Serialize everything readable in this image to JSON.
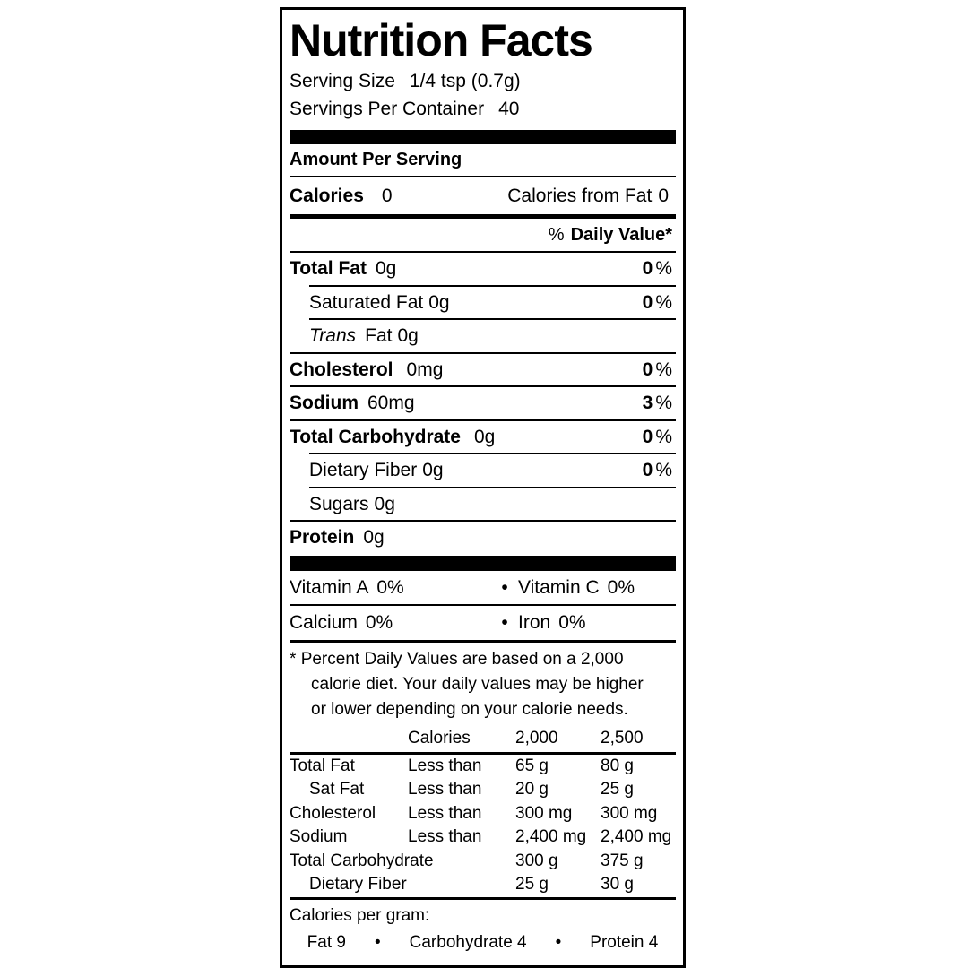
{
  "title": "Nutrition Facts",
  "percent_sign": "%",
  "bullet": "•",
  "serving": {
    "size_label": "Serving Size",
    "size_value": "1/4 tsp (0.7g)",
    "per_container_label": "Servings Per Container",
    "per_container_value": "40"
  },
  "amount_per_serving": "Amount Per Serving",
  "calories": {
    "label": "Calories",
    "value": "0",
    "from_fat_label": "Calories from Fat",
    "from_fat_value": "0"
  },
  "daily_value_header": "Daily Value*",
  "nutrients": [
    {
      "name": "Total Fat",
      "amount": "0g",
      "dv": "0"
    },
    {
      "name": "Saturated Fat",
      "amount": "0g",
      "dv": "0"
    },
    {
      "name_italic": "Trans",
      "name": "Fat",
      "amount": "0g"
    },
    {
      "name": "Cholesterol",
      "amount": "0mg",
      "dv": "0"
    },
    {
      "name": "Sodium",
      "amount": "60mg",
      "dv": "3"
    },
    {
      "name": "Total Carbohydrate",
      "amount": "0g",
      "dv": "0"
    },
    {
      "name": "Dietary Fiber",
      "amount": "0g",
      "dv": "0"
    },
    {
      "name": "Sugars",
      "amount": "0g"
    },
    {
      "name": "Protein",
      "amount": "0g"
    }
  ],
  "vitamins": [
    {
      "left_label": "Vitamin A",
      "left_value": "0%",
      "right_label": "Vitamin C",
      "right_value": "0%"
    },
    {
      "left_label": "Calcium",
      "left_value": "0%",
      "right_label": "Iron",
      "right_value": "0%"
    }
  ],
  "footnote": {
    "marker": "*",
    "lines": [
      "Percent Daily Values are based on a 2,000",
      "calorie diet. Your daily values may be higher",
      "or lower depending on your calorie needs."
    ]
  },
  "dv_table": {
    "header": {
      "calories": "Calories",
      "v2000": "2,000",
      "v2500": "2,500"
    },
    "rows": [
      {
        "name": "Total Fat",
        "qualifier": "Less than",
        "v2000": "65 g",
        "v2500": "80 g"
      },
      {
        "name": "Sat Fat",
        "qualifier": "Less than",
        "v2000": "20 g",
        "v2500": "25 g"
      },
      {
        "name": "Cholesterol",
        "qualifier": "Less than",
        "v2000": "300 mg",
        "v2500": "300 mg"
      },
      {
        "name": "Sodium",
        "qualifier": "Less than",
        "v2000": "2,400 mg",
        "v2500": "2,400 mg"
      },
      {
        "name": "Total Carbohydrate",
        "qualifier": "",
        "v2000": "300 g",
        "v2500": "375 g"
      },
      {
        "name": "Dietary Fiber",
        "qualifier": "",
        "v2000": "25 g",
        "v2500": "30 g"
      }
    ]
  },
  "calories_per_gram": {
    "label": "Calories per gram:",
    "items": [
      "Fat 9",
      "Carbohydrate 4",
      "Protein 4"
    ]
  }
}
